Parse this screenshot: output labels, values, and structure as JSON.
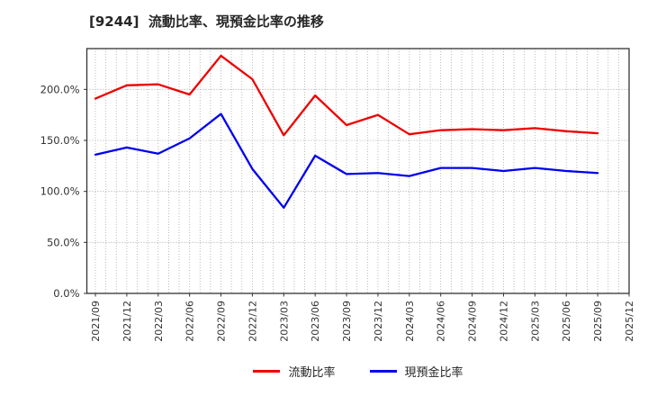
{
  "header": {
    "title": "[9244]  流動比率、現預金比率の推移"
  },
  "chart_data": {
    "type": "line",
    "title": "[9244]  流動比率、現預金比率の推移",
    "categories": [
      "2021/09",
      "2021/12",
      "2022/03",
      "2022/06",
      "2022/09",
      "2022/12",
      "2023/03",
      "2023/06",
      "2023/09",
      "2023/12",
      "2024/03",
      "2024/06",
      "2024/09",
      "2024/12",
      "2025/03",
      "2025/06",
      "2025/09",
      "2025/12"
    ],
    "series": [
      {
        "name": "流動比率",
        "color": "#ee0000",
        "values": [
          191,
          204,
          205,
          195,
          233,
          210,
          155,
          194,
          165,
          175,
          156,
          160,
          161,
          160,
          162,
          159,
          157,
          null
        ]
      },
      {
        "name": "現預金比率",
        "color": "#0000ee",
        "values": [
          136,
          143,
          137,
          152,
          176,
          122,
          84,
          135,
          117,
          118,
          115,
          123,
          123,
          120,
          123,
          120,
          118,
          null
        ]
      }
    ],
    "xlabel": "",
    "ylabel": "",
    "ylim": [
      0,
      240
    ],
    "yticks": [
      0,
      50,
      100,
      150,
      200
    ],
    "ytick_labels": [
      "0.0%",
      "50.0%",
      "100.0%",
      "150.0%",
      "200.0%"
    ],
    "grid": "on",
    "grid_minor_x": "monthly-dotted",
    "legend_position": "bottom-center",
    "axis_color": "#333333",
    "grid_color": "#aaaaaa",
    "tick_label_color": "#333333"
  }
}
